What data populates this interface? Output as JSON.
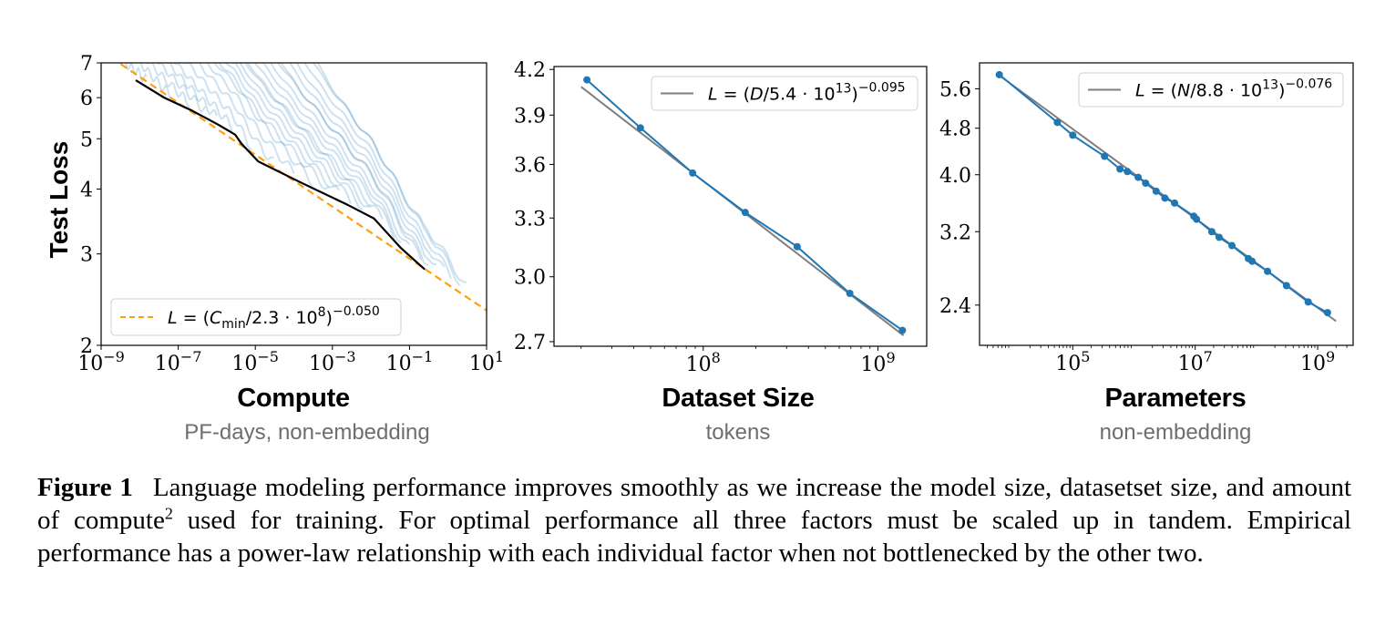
{
  "chart_data": [
    {
      "type": "line",
      "panel": "compute",
      "title": "",
      "xlabel": "Compute",
      "xlabel_sub": "PF-days, non-embedding",
      "ylabel": "Test Loss",
      "xscale": "log",
      "yscale": "log",
      "xlim": [
        1e-09,
        10
      ],
      "ylim": [
        2,
        7
      ],
      "x_ticks": [
        {
          "value": 1e-09,
          "base": "10",
          "exp": "−9"
        },
        {
          "value": 1e-07,
          "base": "10",
          "exp": "−7"
        },
        {
          "value": 1e-05,
          "base": "10",
          "exp": "−5"
        },
        {
          "value": 0.001,
          "base": "10",
          "exp": "−3"
        },
        {
          "value": 0.1,
          "base": "10",
          "exp": "−1"
        },
        {
          "value": 10,
          "base": "10",
          "exp": "1"
        }
      ],
      "y_ticks": [
        {
          "value": 2,
          "label": "2"
        },
        {
          "value": 3,
          "label": "3"
        },
        {
          "value": 4,
          "label": "4"
        },
        {
          "value": 5,
          "label": "5"
        },
        {
          "value": 6,
          "label": "6"
        },
        {
          "value": 7,
          "label": "7"
        }
      ],
      "legend": {
        "placement": "lower-left",
        "entries": [
          {
            "label": "L = (C_min/2.3 · 10^8)^−0.050",
            "style": "dashed",
            "color": "#ff9f0e"
          }
        ]
      },
      "fit": {
        "name": "L = (C_min/2.3·10^8)^−0.050",
        "scale": 230000000.0,
        "exponent": -0.05,
        "color": "#ff9f0e",
        "style": "dashed",
        "x_range": [
          1e-09,
          10
        ]
      },
      "frontier": {
        "name": "compute-efficient frontier",
        "color": "#000000",
        "x": [
          7.9e-09,
          4.3e-08,
          2.2e-07,
          1.1e-06,
          3e-06,
          4.4e-06,
          1.2e-05,
          0.00015,
          0.0023,
          0.012,
          0.06,
          0.25
        ],
        "y": [
          6.48,
          6.0,
          5.67,
          5.32,
          5.09,
          4.89,
          4.52,
          4.12,
          3.74,
          3.51,
          3.08,
          2.8
        ]
      },
      "training_runs": {
        "description": "individual training curves (light blue, semi-transparent)",
        "color": "#1f77b4",
        "start_x_at_top": [
          1e-09,
          2e-09,
          4e-09,
          8e-09,
          1.5e-08,
          3e-08,
          6e-08,
          1e-07,
          1.6e-07,
          2.5e-07,
          4e-07,
          6e-07,
          9e-07,
          1.3e-06,
          2e-06,
          3e-06,
          4.5e-06,
          7e-06,
          1.1e-05,
          1.7e-05,
          2.6e-05,
          4e-05,
          6e-05,
          0.0001,
          0.00016,
          0.00025
        ],
        "end_x": [
          1.5e-08,
          6e-08,
          2e-07,
          5e-07,
          1e-06,
          2.5e-06,
          8e-06,
          3e-05,
          0.0001,
          0.0003,
          0.0008,
          0.0015,
          0.003,
          0.006,
          0.01,
          0.02,
          0.04,
          0.06,
          0.1,
          0.2,
          0.3,
          0.5,
          0.8,
          1.2,
          2.0,
          3.0
        ]
      }
    },
    {
      "type": "line",
      "panel": "dataset_size",
      "xlabel": "Dataset Size",
      "xlabel_sub": "tokens",
      "ylabel": "",
      "xscale": "log",
      "yscale": "log",
      "xlim": [
        14000000.0,
        1900000000.0
      ],
      "ylim": [
        2.68,
        4.22
      ],
      "x_ticks": [
        {
          "value": 100000000.0,
          "base": "10",
          "exp": "8"
        },
        {
          "value": 1000000000.0,
          "base": "10",
          "exp": "9"
        }
      ],
      "y_ticks": [
        {
          "value": 2.7,
          "label": "2.7"
        },
        {
          "value": 3.0,
          "label": "3.0"
        },
        {
          "value": 3.3,
          "label": "3.3"
        },
        {
          "value": 3.6,
          "label": "3.6"
        },
        {
          "value": 3.9,
          "label": "3.9"
        },
        {
          "value": 4.2,
          "label": "4.2"
        }
      ],
      "legend": {
        "placement": "top-right",
        "entries": [
          {
            "label": "L = (D/5.4 · 10^13)^−0.095",
            "style": "solid",
            "color": "#7f7f7f"
          }
        ]
      },
      "fit": {
        "name": "L = (D/5.4·10^13)^−0.095",
        "scale": 54000000000000.0,
        "exponent": -0.095,
        "color": "#7f7f7f",
        "x_range": [
          20000000.0,
          1400000000.0
        ]
      },
      "series": [
        {
          "name": "empirical",
          "color": "#1f77b4",
          "marker": "circle",
          "x": [
            21600000.0,
            43700000.0,
            87000000.0,
            174000000.0,
            345000000.0,
            690000000.0,
            1380000000.0
          ],
          "y": [
            4.13,
            3.82,
            3.55,
            3.33,
            3.15,
            2.92,
            2.75
          ]
        }
      ]
    },
    {
      "type": "line",
      "panel": "parameters",
      "xlabel": "Parameters",
      "xlabel_sub": "non-embedding",
      "ylabel": "",
      "xscale": "log",
      "yscale": "log",
      "xlim": [
        3000.0,
        3800000000.0
      ],
      "ylim": [
        2.05,
        6.2
      ],
      "x_ticks": [
        {
          "value": 100000.0,
          "base": "10",
          "exp": "5"
        },
        {
          "value": 10000000.0,
          "base": "10",
          "exp": "7"
        },
        {
          "value": 1000000000.0,
          "base": "10",
          "exp": "9"
        }
      ],
      "y_ticks": [
        {
          "value": 2.4,
          "label": "2.4"
        },
        {
          "value": 3.2,
          "label": "3.2"
        },
        {
          "value": 4.0,
          "label": "4.0"
        },
        {
          "value": 4.8,
          "label": "4.8"
        },
        {
          "value": 5.6,
          "label": "5.6"
        }
      ],
      "legend": {
        "placement": "top-right",
        "entries": [
          {
            "label": "L = (N/8.8 · 10^13)^−0.076",
            "style": "solid",
            "color": "#7f7f7f"
          }
        ]
      },
      "fit": {
        "name": "L = (N/8.8·10^13)^−0.076",
        "scale": 88000000000000.0,
        "exponent": -0.076,
        "color": "#7f7f7f",
        "x_range": [
          6300.0,
          2000000000.0
        ]
      },
      "series": [
        {
          "name": "empirical",
          "color": "#1f77b4",
          "marker": "circle",
          "x": [
            6300.0,
            56000.0,
            100000.0,
            330000.0,
            590000.0,
            780000.0,
            1170000.0,
            1550000.0,
            2300000.0,
            3200000.0,
            4600000.0,
            9500000.0,
            10500000.0,
            18700000.0,
            24600000.0,
            39800000.0,
            74000000.0,
            85000000.0,
            152000000.0,
            310000000.0,
            700000000.0,
            1450000000.0
          ],
          "y": [
            5.92,
            4.91,
            4.67,
            4.3,
            4.09,
            4.05,
            3.96,
            3.87,
            3.75,
            3.65,
            3.58,
            3.4,
            3.36,
            3.2,
            3.13,
            3.03,
            2.88,
            2.85,
            2.74,
            2.59,
            2.43,
            2.33
          ]
        }
      ]
    }
  ],
  "legends": {
    "compute": {
      "L": "L",
      "eq": " = (",
      "C": "C",
      "sub": "min",
      "rest": "/2.3 · 10",
      "pow": "8",
      "close": ")",
      "exp": "−0.050"
    },
    "dataset": {
      "L": "L",
      "eq": " = (",
      "var": "D",
      "rest": "/5.4 · 10",
      "pow": "13",
      "close": ")",
      "exp": "−0.095"
    },
    "params": {
      "L": "L",
      "eq": " = (",
      "var": "N",
      "rest": "/8.8 · 10",
      "pow": "13",
      "close": ")",
      "exp": "−0.076"
    }
  },
  "caption": {
    "label": "Figure 1",
    "text_before_sup": "Language modeling performance improves smoothly as we increase the model size, datasetset size, and amount of compute",
    "sup": "2",
    "text_after_sup": " used for training. For optimal performance all three factors must be scaled up in tandem. Empirical performance has a power-law relationship with each individual factor when not bottlenecked by the other two."
  }
}
